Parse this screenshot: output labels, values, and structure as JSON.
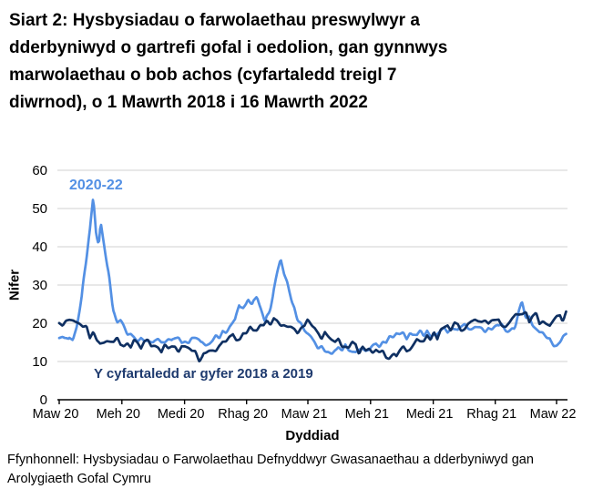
{
  "source_note": "Ffynhonnell: Hysbysiadau o Farwolaethau Defnyddwyr Gwasanaethau a dderbyniwyd gan Arolygiaeth Gofal Cymru",
  "colors": {
    "series_2020_22": "#5390E4",
    "series_average": "#0F3062",
    "gridline": "#D9D9D9",
    "axis": "#000000"
  },
  "chart_data": {
    "type": "line",
    "title": "Siart 2: Hysbysiadau o farwolaethau preswylwyr a dderbyniwyd o gartrefi gofal i oedolion, gan gynnwys marwolaethau o bob achos (cyfartaledd treigl 7 diwrnod), o 1 Mawrth 2018 i 16 Mawrth 2022",
    "title_lines": [
      "Siart 2: Hysbysiadau o farwolaethau preswylwyr a",
      "dderbyniwyd o gartrefi gofal i oedolion, gan gynnwys",
      "marwolaethau o bob achos (cyfartaledd treigl 7",
      "diwrnod), o 1 Mawrth 2018 i 16 Mawrth 2022"
    ],
    "xlabel": "Dyddiad",
    "ylabel": "Nifer",
    "ylim": [
      0,
      60
    ],
    "y_ticks": [
      0,
      10,
      20,
      30,
      40,
      50,
      60
    ],
    "grid": "horizontal",
    "legend_position": "inline annotations on lines",
    "x_unit": "days since 1 Mawrth 2020",
    "x_max_day": 745,
    "x_ticks": [
      {
        "day": 0,
        "label": "Maw 20"
      },
      {
        "day": 92,
        "label": "Meh 20"
      },
      {
        "day": 184,
        "label": "Medi 20"
      },
      {
        "day": 275,
        "label": "Rhag 20"
      },
      {
        "day": 365,
        "label": "Maw 21"
      },
      {
        "day": 457,
        "label": "Meh 21"
      },
      {
        "day": 549,
        "label": "Medi 21"
      },
      {
        "day": 640,
        "label": "Rhag 21"
      },
      {
        "day": 730,
        "label": "Maw 22"
      }
    ],
    "series": [
      {
        "name": "2020-22",
        "color": "#5390E4",
        "wiggle": 1.0,
        "points": [
          [
            0,
            17
          ],
          [
            8,
            15.5
          ],
          [
            14,
            15
          ],
          [
            20,
            16.5
          ],
          [
            26,
            20
          ],
          [
            33,
            27
          ],
          [
            40,
            37
          ],
          [
            46,
            47
          ],
          [
            50,
            53
          ],
          [
            54,
            44
          ],
          [
            58,
            40
          ],
          [
            61,
            45.5
          ],
          [
            64,
            42.5
          ],
          [
            68,
            38
          ],
          [
            73,
            33
          ],
          [
            79,
            23.5
          ],
          [
            85,
            21
          ],
          [
            92,
            19.5
          ],
          [
            100,
            17
          ],
          [
            110,
            15.5
          ],
          [
            124,
            16
          ],
          [
            138,
            14.5
          ],
          [
            152,
            15.5
          ],
          [
            166,
            16
          ],
          [
            180,
            15
          ],
          [
            194,
            16
          ],
          [
            208,
            14.5
          ],
          [
            222,
            15.5
          ],
          [
            236,
            17
          ],
          [
            248,
            18.5
          ],
          [
            258,
            21
          ],
          [
            264,
            25
          ],
          [
            270,
            23.5
          ],
          [
            277,
            26.5
          ],
          [
            283,
            24.5
          ],
          [
            290,
            27
          ],
          [
            296,
            24.5
          ],
          [
            302,
            20.5
          ],
          [
            308,
            23
          ],
          [
            314,
            27
          ],
          [
            320,
            33
          ],
          [
            325,
            36.5
          ],
          [
            330,
            33
          ],
          [
            336,
            29
          ],
          [
            342,
            25
          ],
          [
            348,
            22
          ],
          [
            355,
            19.5
          ],
          [
            364,
            16.5
          ],
          [
            378,
            14.5
          ],
          [
            392,
            13
          ],
          [
            406,
            12.5
          ],
          [
            420,
            13.5
          ],
          [
            434,
            13
          ],
          [
            448,
            12.5
          ],
          [
            462,
            14
          ],
          [
            476,
            14.5
          ],
          [
            490,
            16.5
          ],
          [
            504,
            17
          ],
          [
            518,
            16.5
          ],
          [
            532,
            17.5
          ],
          [
            546,
            17
          ],
          [
            560,
            18.5
          ],
          [
            574,
            18
          ],
          [
            588,
            19.5
          ],
          [
            602,
            18.5
          ],
          [
            616,
            19
          ],
          [
            630,
            18
          ],
          [
            644,
            19.5
          ],
          [
            658,
            18
          ],
          [
            668,
            19
          ],
          [
            674,
            22.5
          ],
          [
            679,
            25.5
          ],
          [
            684,
            22.5
          ],
          [
            692,
            20.5
          ],
          [
            700,
            19
          ],
          [
            708,
            17.5
          ],
          [
            716,
            15.5
          ],
          [
            726,
            14.5
          ],
          [
            736,
            15.5
          ],
          [
            745,
            17.5
          ]
        ]
      },
      {
        "name": "Y cyfartaledd ar gyfer 2018 a 2019",
        "color": "#0F3062",
        "wiggle": 1.4,
        "points": [
          [
            0,
            20.5
          ],
          [
            10,
            20.5
          ],
          [
            20,
            21
          ],
          [
            30,
            19
          ],
          [
            40,
            18
          ],
          [
            50,
            16.5
          ],
          [
            60,
            16
          ],
          [
            70,
            16.5
          ],
          [
            80,
            15.5
          ],
          [
            90,
            14.5
          ],
          [
            100,
            14.5
          ],
          [
            110,
            14.8
          ],
          [
            120,
            14
          ],
          [
            130,
            14.5
          ],
          [
            140,
            14
          ],
          [
            150,
            13.8
          ],
          [
            160,
            13.5
          ],
          [
            170,
            13.8
          ],
          [
            180,
            13.2
          ],
          [
            190,
            13
          ],
          [
            200,
            11.5
          ],
          [
            206,
            10.5
          ],
          [
            212,
            12.5
          ],
          [
            220,
            12
          ],
          [
            230,
            13.5
          ],
          [
            240,
            15
          ],
          [
            250,
            15.5
          ],
          [
            260,
            16
          ],
          [
            270,
            16.5
          ],
          [
            280,
            18
          ],
          [
            290,
            19
          ],
          [
            300,
            19.5
          ],
          [
            310,
            20
          ],
          [
            320,
            20.5
          ],
          [
            330,
            19.5
          ],
          [
            340,
            19
          ],
          [
            350,
            18.5
          ],
          [
            358,
            19.5
          ],
          [
            364,
            20
          ],
          [
            372,
            18.5
          ],
          [
            380,
            17.5
          ],
          [
            390,
            16.5
          ],
          [
            400,
            15.5
          ],
          [
            410,
            15
          ],
          [
            420,
            13.5
          ],
          [
            430,
            14
          ],
          [
            440,
            13
          ],
          [
            450,
            13.2
          ],
          [
            460,
            13.5
          ],
          [
            470,
            12.5
          ],
          [
            478,
            11
          ],
          [
            484,
            10.5
          ],
          [
            492,
            12.5
          ],
          [
            500,
            13
          ],
          [
            510,
            13.8
          ],
          [
            520,
            14.5
          ],
          [
            530,
            15.5
          ],
          [
            540,
            15.8
          ],
          [
            550,
            16.5
          ],
          [
            560,
            17.5
          ],
          [
            570,
            18.5
          ],
          [
            580,
            19.5
          ],
          [
            590,
            19
          ],
          [
            600,
            19.5
          ],
          [
            610,
            20
          ],
          [
            620,
            20
          ],
          [
            630,
            20.5
          ],
          [
            640,
            20.5
          ],
          [
            650,
            19.5
          ],
          [
            660,
            20
          ],
          [
            670,
            21.5
          ],
          [
            680,
            22.5
          ],
          [
            690,
            21
          ],
          [
            700,
            21.5
          ],
          [
            710,
            20.5
          ],
          [
            720,
            20.5
          ],
          [
            730,
            21.5
          ],
          [
            738,
            20.5
          ],
          [
            745,
            22.5
          ]
        ]
      }
    ]
  }
}
